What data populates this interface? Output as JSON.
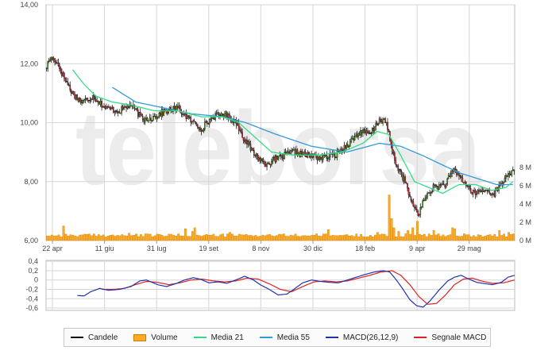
{
  "chart_data": [
    {
      "type": "candlestick",
      "watermark": "teleborsa",
      "x_ticks": [
        "22 apr",
        "11 giu",
        "31 lug",
        "19 set",
        "8 nov",
        "30 dic",
        "18 feb",
        "9 apr",
        "29 mag"
      ],
      "y_ticks": [
        "14,00",
        "12,00",
        "10,00",
        "8,00",
        "6,00"
      ],
      "ylim": [
        6,
        14
      ],
      "volume_ticks": [
        "8 M",
        "6 M",
        "4 M",
        "2 M",
        "0 M"
      ],
      "volume_lim": [
        0,
        8
      ],
      "grid": true,
      "price_anchor_points": [
        [
          0,
          11.9
        ],
        [
          3,
          12.2
        ],
        [
          8,
          12.1
        ],
        [
          14,
          11.6
        ],
        [
          22,
          11.0
        ],
        [
          30,
          10.7
        ],
        [
          40,
          10.9
        ],
        [
          50,
          10.5
        ],
        [
          62,
          10.4
        ],
        [
          72,
          10.6
        ],
        [
          82,
          10.1
        ],
        [
          92,
          10.2
        ],
        [
          102,
          10.4
        ],
        [
          112,
          10.5
        ],
        [
          122,
          10.1
        ],
        [
          132,
          9.8
        ],
        [
          142,
          10.2
        ],
        [
          152,
          10.3
        ],
        [
          162,
          10.0
        ],
        [
          168,
          9.5
        ],
        [
          176,
          9.0
        ],
        [
          186,
          8.6
        ],
        [
          198,
          8.8
        ],
        [
          210,
          9.0
        ],
        [
          222,
          8.9
        ],
        [
          234,
          8.8
        ],
        [
          246,
          8.9
        ],
        [
          258,
          9.3
        ],
        [
          268,
          9.7
        ],
        [
          276,
          9.6
        ],
        [
          284,
          10.1
        ],
        [
          290,
          10.0
        ],
        [
          294,
          9.2
        ],
        [
          298,
          8.6
        ],
        [
          306,
          8.0
        ],
        [
          312,
          7.2
        ],
        [
          318,
          6.9
        ],
        [
          322,
          7.4
        ],
        [
          330,
          7.8
        ],
        [
          340,
          7.9
        ],
        [
          348,
          8.4
        ],
        [
          356,
          8.0
        ],
        [
          364,
          7.6
        ],
        [
          374,
          7.7
        ],
        [
          382,
          7.6
        ],
        [
          388,
          7.9
        ],
        [
          394,
          8.3
        ],
        [
          398,
          8.3
        ]
      ],
      "media21_anchor_points": [
        [
          22,
          11.8
        ],
        [
          32,
          11.3
        ],
        [
          42,
          10.9
        ],
        [
          56,
          10.7
        ],
        [
          72,
          10.6
        ],
        [
          92,
          10.4
        ],
        [
          112,
          10.4
        ],
        [
          132,
          10.2
        ],
        [
          150,
          10.2
        ],
        [
          164,
          10.0
        ],
        [
          178,
          9.5
        ],
        [
          192,
          9.0
        ],
        [
          210,
          8.9
        ],
        [
          232,
          8.9
        ],
        [
          252,
          9.0
        ],
        [
          270,
          9.3
        ],
        [
          282,
          9.7
        ],
        [
          292,
          9.6
        ],
        [
          302,
          8.9
        ],
        [
          314,
          8.0
        ],
        [
          326,
          7.8
        ],
        [
          338,
          7.6
        ],
        [
          352,
          7.9
        ],
        [
          366,
          7.9
        ],
        [
          380,
          7.7
        ],
        [
          392,
          7.8
        ],
        [
          398,
          8.0
        ]
      ],
      "media55_anchor_points": [
        [
          56,
          11.2
        ],
        [
          76,
          10.7
        ],
        [
          100,
          10.5
        ],
        [
          124,
          10.3
        ],
        [
          150,
          10.2
        ],
        [
          170,
          10.0
        ],
        [
          196,
          9.6
        ],
        [
          226,
          9.2
        ],
        [
          256,
          9.0
        ],
        [
          284,
          9.3
        ],
        [
          302,
          9.2
        ],
        [
          320,
          8.9
        ],
        [
          336,
          8.6
        ],
        [
          352,
          8.3
        ],
        [
          368,
          8.1
        ],
        [
          384,
          7.9
        ],
        [
          398,
          7.9
        ]
      ],
      "volume_baseline": 0.5,
      "volume_spikes": [
        [
          14,
          1.6
        ],
        [
          70,
          0.8
        ],
        [
          118,
          1.3
        ],
        [
          124,
          1.0
        ],
        [
          126,
          1.4
        ],
        [
          156,
          0.9
        ],
        [
          240,
          1.2
        ],
        [
          282,
          0.9
        ],
        [
          292,
          5.0
        ],
        [
          294,
          2.4
        ],
        [
          296,
          1.4
        ],
        [
          300,
          1.0
        ],
        [
          308,
          1.1
        ],
        [
          312,
          1.4
        ],
        [
          316,
          2.1
        ],
        [
          330,
          1.1
        ],
        [
          346,
          1.4
        ],
        [
          348,
          1.3
        ],
        [
          386,
          1.1
        ],
        [
          394,
          0.9
        ]
      ],
      "legend": [
        "Candele",
        "Volume",
        "Media 21",
        "Media 55",
        "MACD(26,12,9)",
        "Segnale MACD"
      ],
      "colors": {
        "candle": "#000000",
        "candle_up": "#4aa020",
        "candle_down": "#c0303a",
        "volume_fill": "#ffaa22",
        "volume_stroke": "#d08000",
        "media21": "#33dd88",
        "media55": "#3399dd",
        "macd": "#2233aa",
        "signal": "#dd2222",
        "watermark": "#ececec"
      }
    },
    {
      "type": "line",
      "y_ticks": [
        "0,4",
        "0,2",
        "0",
        "-0,2",
        "-0,4",
        "-0,6"
      ],
      "ylim": [
        -0.65,
        0.42
      ],
      "grid": true,
      "macd_anchor_points": [
        [
          28,
          -0.33
        ],
        [
          34,
          -0.34
        ],
        [
          40,
          -0.25
        ],
        [
          48,
          -0.18
        ],
        [
          56,
          -0.22
        ],
        [
          66,
          -0.2
        ],
        [
          76,
          -0.14
        ],
        [
          84,
          -0.02
        ],
        [
          90,
          0.0
        ],
        [
          100,
          -0.1
        ],
        [
          108,
          -0.14
        ],
        [
          116,
          -0.08
        ],
        [
          124,
          0.0
        ],
        [
          132,
          0.05
        ],
        [
          138,
          0.02
        ],
        [
          146,
          -0.06
        ],
        [
          154,
          -0.04
        ],
        [
          162,
          -0.07
        ],
        [
          170,
          0.0
        ],
        [
          178,
          0.08
        ],
        [
          186,
          0.0
        ],
        [
          192,
          -0.1
        ],
        [
          200,
          -0.2
        ],
        [
          208,
          -0.32
        ],
        [
          216,
          -0.3
        ],
        [
          222,
          -0.2
        ],
        [
          230,
          -0.06
        ],
        [
          238,
          0.0
        ],
        [
          246,
          -0.03
        ],
        [
          254,
          -0.05
        ],
        [
          262,
          -0.06
        ],
        [
          270,
          0.0
        ],
        [
          278,
          0.06
        ],
        [
          286,
          0.12
        ],
        [
          294,
          0.17
        ],
        [
          302,
          0.2
        ],
        [
          308,
          0.17
        ],
        [
          314,
          0.0
        ],
        [
          320,
          -0.2
        ],
        [
          326,
          -0.42
        ],
        [
          332,
          -0.55
        ],
        [
          338,
          -0.58
        ],
        [
          344,
          -0.45
        ],
        [
          352,
          -0.22
        ],
        [
          360,
          -0.02
        ],
        [
          366,
          0.06
        ],
        [
          372,
          0.1
        ],
        [
          378,
          0.03
        ],
        [
          386,
          -0.05
        ],
        [
          394,
          -0.08
        ],
        [
          400,
          -0.1
        ],
        [
          408,
          -0.05
        ],
        [
          414,
          0.06
        ],
        [
          420,
          0.1
        ]
      ],
      "signal_anchor_points": [
        [
          50,
          -0.2
        ],
        [
          60,
          -0.2
        ],
        [
          70,
          -0.18
        ],
        [
          80,
          -0.1
        ],
        [
          90,
          -0.03
        ],
        [
          100,
          -0.05
        ],
        [
          110,
          -0.1
        ],
        [
          120,
          -0.06
        ],
        [
          130,
          0.0
        ],
        [
          140,
          0.02
        ],
        [
          150,
          -0.02
        ],
        [
          160,
          -0.04
        ],
        [
          170,
          -0.02
        ],
        [
          180,
          0.04
        ],
        [
          190,
          0.02
        ],
        [
          200,
          -0.08
        ],
        [
          210,
          -0.2
        ],
        [
          220,
          -0.25
        ],
        [
          230,
          -0.14
        ],
        [
          240,
          -0.04
        ],
        [
          250,
          -0.02
        ],
        [
          260,
          -0.04
        ],
        [
          270,
          -0.02
        ],
        [
          280,
          0.04
        ],
        [
          290,
          0.1
        ],
        [
          300,
          0.17
        ],
        [
          310,
          0.2
        ],
        [
          318,
          0.1
        ],
        [
          326,
          -0.1
        ],
        [
          334,
          -0.35
        ],
        [
          342,
          -0.52
        ],
        [
          350,
          -0.5
        ],
        [
          358,
          -0.32
        ],
        [
          366,
          -0.1
        ],
        [
          374,
          0.02
        ],
        [
          382,
          0.04
        ],
        [
          390,
          -0.02
        ],
        [
          400,
          -0.07
        ],
        [
          410,
          -0.06
        ],
        [
          420,
          0.0
        ]
      ]
    }
  ]
}
